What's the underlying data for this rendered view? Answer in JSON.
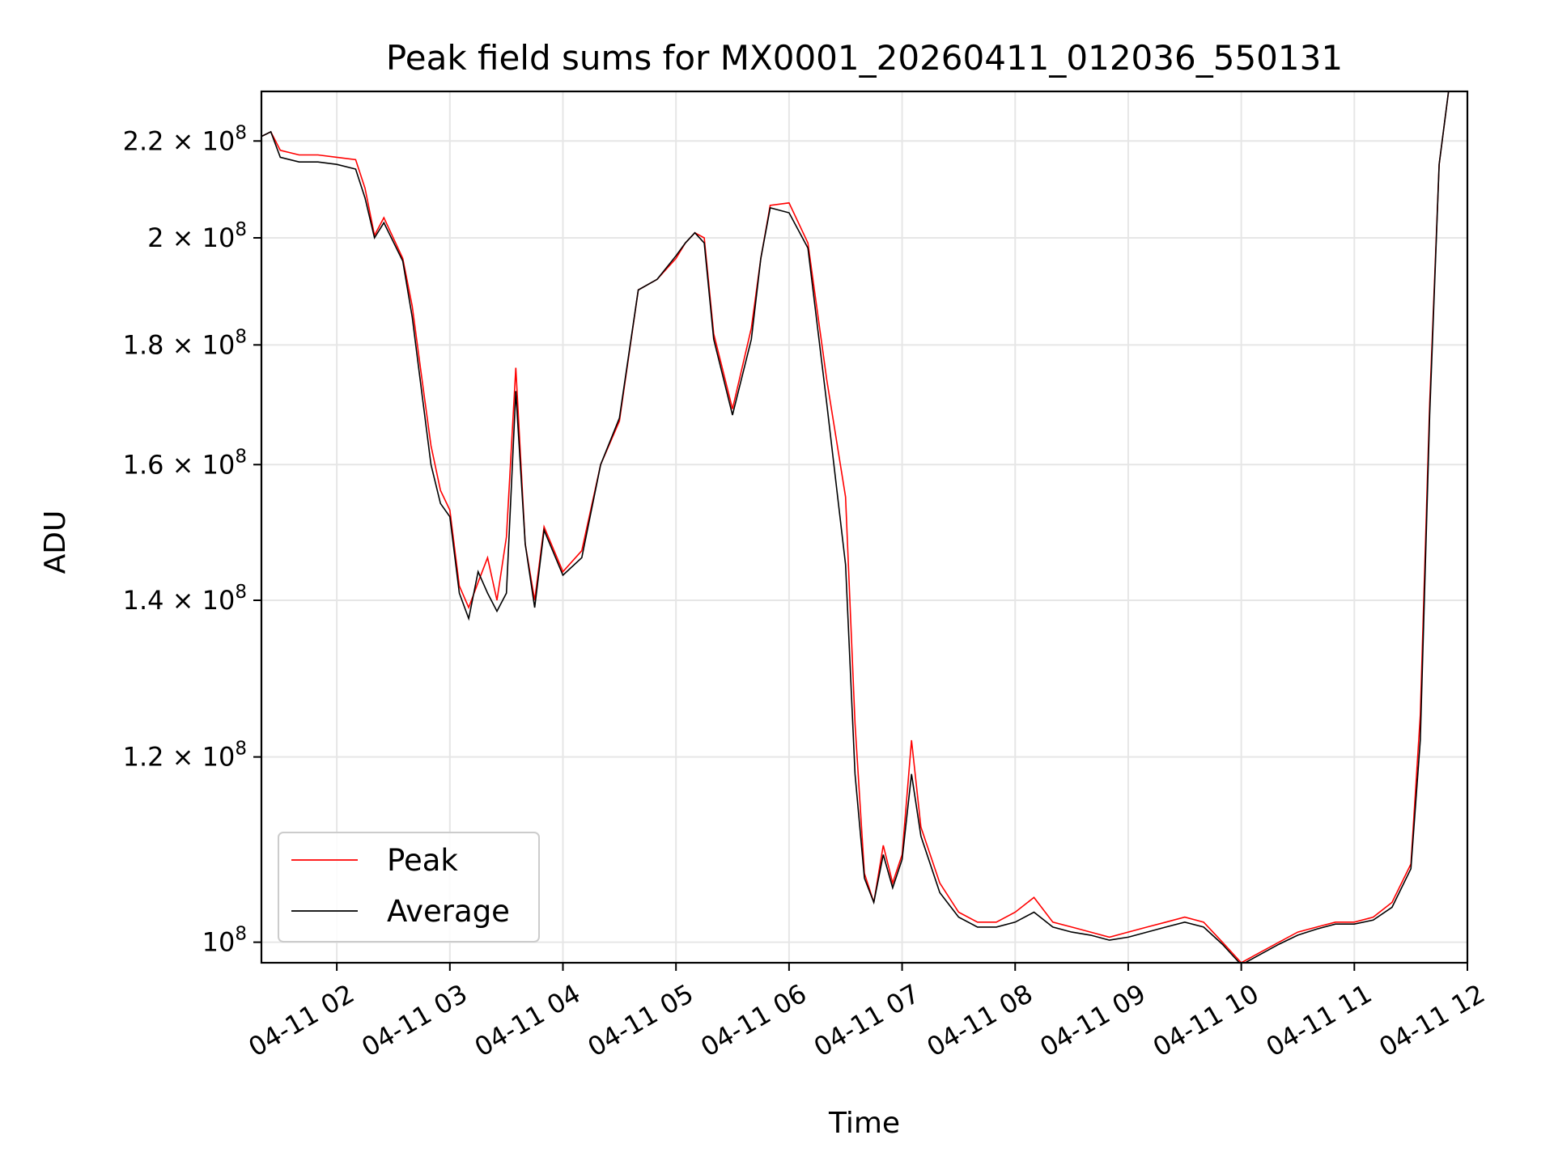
{
  "chart_data": {
    "type": "line",
    "title": "Peak field sums for MX0001_20260411_012036_550131",
    "xlabel": "Time",
    "ylabel": "ADU",
    "yscale": "log",
    "ylim": [
      98000000,
      231000000
    ],
    "xlim": [
      "04-11 01:20",
      "04-11 12:00"
    ],
    "grid": true,
    "legend": "lower-left",
    "x_ticks": [
      "04-11 02",
      "04-11 03",
      "04-11 04",
      "04-11 05",
      "04-11 06",
      "04-11 07",
      "04-11 08",
      "04-11 09",
      "04-11 10",
      "04-11 11",
      "04-11 12"
    ],
    "y_ticks": [
      {
        "value": 100000000,
        "mantissa": "",
        "exp": "8",
        "label_base": "10"
      },
      {
        "value": 120000000,
        "mantissa": "1.2 × ",
        "exp": "8",
        "label_base": "10"
      },
      {
        "value": 140000000,
        "mantissa": "1.4 × ",
        "exp": "8",
        "label_base": "10"
      },
      {
        "value": 160000000,
        "mantissa": "1.6 × ",
        "exp": "8",
        "label_base": "10"
      },
      {
        "value": 180000000,
        "mantissa": "1.8 × ",
        "exp": "8",
        "label_base": "10"
      },
      {
        "value": 200000000,
        "mantissa": "2 × ",
        "exp": "8",
        "label_base": "10"
      },
      {
        "value": 220000000,
        "mantissa": "2.2 × ",
        "exp": "8",
        "label_base": "10"
      }
    ],
    "colors": {
      "peak": "#ff0000",
      "average": "#000000",
      "grid": "#e6e6e6"
    },
    "series": [
      {
        "name": "Peak",
        "color": "#ff0000",
        "x": [
          "04-11 01:20",
          "04-11 01:25",
          "04-11 01:30",
          "04-11 01:40",
          "04-11 01:50",
          "04-11 02:00",
          "04-11 02:10",
          "04-11 02:15",
          "04-11 02:20",
          "04-11 02:25",
          "04-11 02:35",
          "04-11 02:40",
          "04-11 02:45",
          "04-11 02:50",
          "04-11 02:55",
          "04-11 03:00",
          "04-11 03:05",
          "04-11 03:10",
          "04-11 03:15",
          "04-11 03:20",
          "04-11 03:25",
          "04-11 03:30",
          "04-11 03:35",
          "04-11 03:40",
          "04-11 03:45",
          "04-11 03:50",
          "04-11 04:00",
          "04-11 04:10",
          "04-11 04:20",
          "04-11 04:30",
          "04-11 04:40",
          "04-11 04:50",
          "04-11 05:00",
          "04-11 05:05",
          "04-11 05:10",
          "04-11 05:15",
          "04-11 05:20",
          "04-11 05:30",
          "04-11 05:40",
          "04-11 05:45",
          "04-11 05:50",
          "04-11 06:00",
          "04-11 06:10",
          "04-11 06:20",
          "04-11 06:30",
          "04-11 06:35",
          "04-11 06:40",
          "04-11 06:45",
          "04-11 06:50",
          "04-11 06:55",
          "04-11 07:00",
          "04-11 07:05",
          "04-11 07:10",
          "04-11 07:20",
          "04-11 07:30",
          "04-11 07:40",
          "04-11 07:50",
          "04-11 08:00",
          "04-11 08:10",
          "04-11 08:20",
          "04-11 08:30",
          "04-11 08:40",
          "04-11 08:50",
          "04-11 09:00",
          "04-11 09:10",
          "04-11 09:20",
          "04-11 09:30",
          "04-11 09:40",
          "04-11 09:50",
          "04-11 10:00",
          "04-11 10:10",
          "04-11 10:20",
          "04-11 10:30",
          "04-11 10:40",
          "04-11 10:50",
          "04-11 11:00",
          "04-11 11:10",
          "04-11 11:20",
          "04-11 11:30",
          "04-11 11:35",
          "04-11 11:40",
          "04-11 11:45",
          "04-11 11:50",
          "04-11 11:55"
        ],
        "y": [
          221000000,
          222000000,
          218000000,
          217000000,
          217000000,
          216500000,
          216000000,
          210000000,
          200500000,
          204000000,
          196000000,
          187000000,
          174500000,
          163000000,
          156000000,
          153000000,
          142000000,
          139000000,
          142500000,
          146000000,
          140000000,
          149000000,
          176000000,
          148000000,
          140000000,
          150500000,
          144000000,
          147000000,
          160000000,
          167000000,
          190000000,
          192000000,
          196000000,
          199000000,
          201000000,
          200000000,
          182000000,
          169000000,
          183000000,
          196000000,
          206500000,
          207000000,
          199000000,
          174000000,
          155000000,
          124000000,
          107000000,
          104000000,
          110000000,
          106000000,
          109000000,
          122000000,
          112000000,
          106000000,
          103000000,
          102000000,
          102000000,
          103000000,
          104500000,
          102000000,
          101500000,
          101000000,
          100500000,
          101000000,
          101500000,
          102000000,
          102500000,
          102000000,
          100000000,
          98000000,
          99000000,
          100000000,
          101000000,
          101500000,
          102000000,
          102000000,
          102500000,
          104000000,
          108000000,
          125000000,
          170000000,
          215000000,
          231000000,
          231000000
        ]
      },
      {
        "name": "Average",
        "color": "#000000",
        "x": [
          "04-11 01:20",
          "04-11 01:25",
          "04-11 01:30",
          "04-11 01:40",
          "04-11 01:50",
          "04-11 02:00",
          "04-11 02:10",
          "04-11 02:15",
          "04-11 02:20",
          "04-11 02:25",
          "04-11 02:35",
          "04-11 02:40",
          "04-11 02:45",
          "04-11 02:50",
          "04-11 02:55",
          "04-11 03:00",
          "04-11 03:05",
          "04-11 03:10",
          "04-11 03:15",
          "04-11 03:20",
          "04-11 03:25",
          "04-11 03:30",
          "04-11 03:35",
          "04-11 03:40",
          "04-11 03:45",
          "04-11 03:50",
          "04-11 04:00",
          "04-11 04:10",
          "04-11 04:20",
          "04-11 04:30",
          "04-11 04:40",
          "04-11 04:50",
          "04-11 05:00",
          "04-11 05:05",
          "04-11 05:10",
          "04-11 05:15",
          "04-11 05:20",
          "04-11 05:30",
          "04-11 05:40",
          "04-11 05:45",
          "04-11 05:50",
          "04-11 06:00",
          "04-11 06:10",
          "04-11 06:20",
          "04-11 06:30",
          "04-11 06:35",
          "04-11 06:40",
          "04-11 06:45",
          "04-11 06:50",
          "04-11 06:55",
          "04-11 07:00",
          "04-11 07:05",
          "04-11 07:10",
          "04-11 07:20",
          "04-11 07:30",
          "04-11 07:40",
          "04-11 07:50",
          "04-11 08:00",
          "04-11 08:10",
          "04-11 08:20",
          "04-11 08:30",
          "04-11 08:40",
          "04-11 08:50",
          "04-11 09:00",
          "04-11 09:10",
          "04-11 09:20",
          "04-11 09:30",
          "04-11 09:40",
          "04-11 09:50",
          "04-11 10:00",
          "04-11 10:10",
          "04-11 10:20",
          "04-11 10:30",
          "04-11 10:40",
          "04-11 10:50",
          "04-11 11:00",
          "04-11 11:10",
          "04-11 11:20",
          "04-11 11:30",
          "04-11 11:35",
          "04-11 11:40",
          "04-11 11:45",
          "04-11 11:50",
          "04-11 11:55"
        ],
        "y": [
          221000000,
          222000000,
          216500000,
          215500000,
          215500000,
          215000000,
          214000000,
          208000000,
          200000000,
          203000000,
          195500000,
          185000000,
          172000000,
          160000000,
          154000000,
          152000000,
          141000000,
          137500000,
          144000000,
          141000000,
          138500000,
          141000000,
          172000000,
          148000000,
          139000000,
          150000000,
          143500000,
          146000000,
          160000000,
          167500000,
          190000000,
          192000000,
          196500000,
          199000000,
          201000000,
          199000000,
          181000000,
          168000000,
          181000000,
          196000000,
          206000000,
          205000000,
          198000000,
          170000000,
          145000000,
          118000000,
          106500000,
          104000000,
          109000000,
          105500000,
          108500000,
          118000000,
          111000000,
          105000000,
          102500000,
          101500000,
          101500000,
          102000000,
          103000000,
          101500000,
          101000000,
          100700000,
          100200000,
          100500000,
          101000000,
          101500000,
          102000000,
          101500000,
          99800000,
          97800000,
          98800000,
          99800000,
          100700000,
          101300000,
          101800000,
          101800000,
          102200000,
          103500000,
          107500000,
          122000000,
          168000000,
          215000000,
          231000000,
          231000000
        ]
      }
    ]
  }
}
